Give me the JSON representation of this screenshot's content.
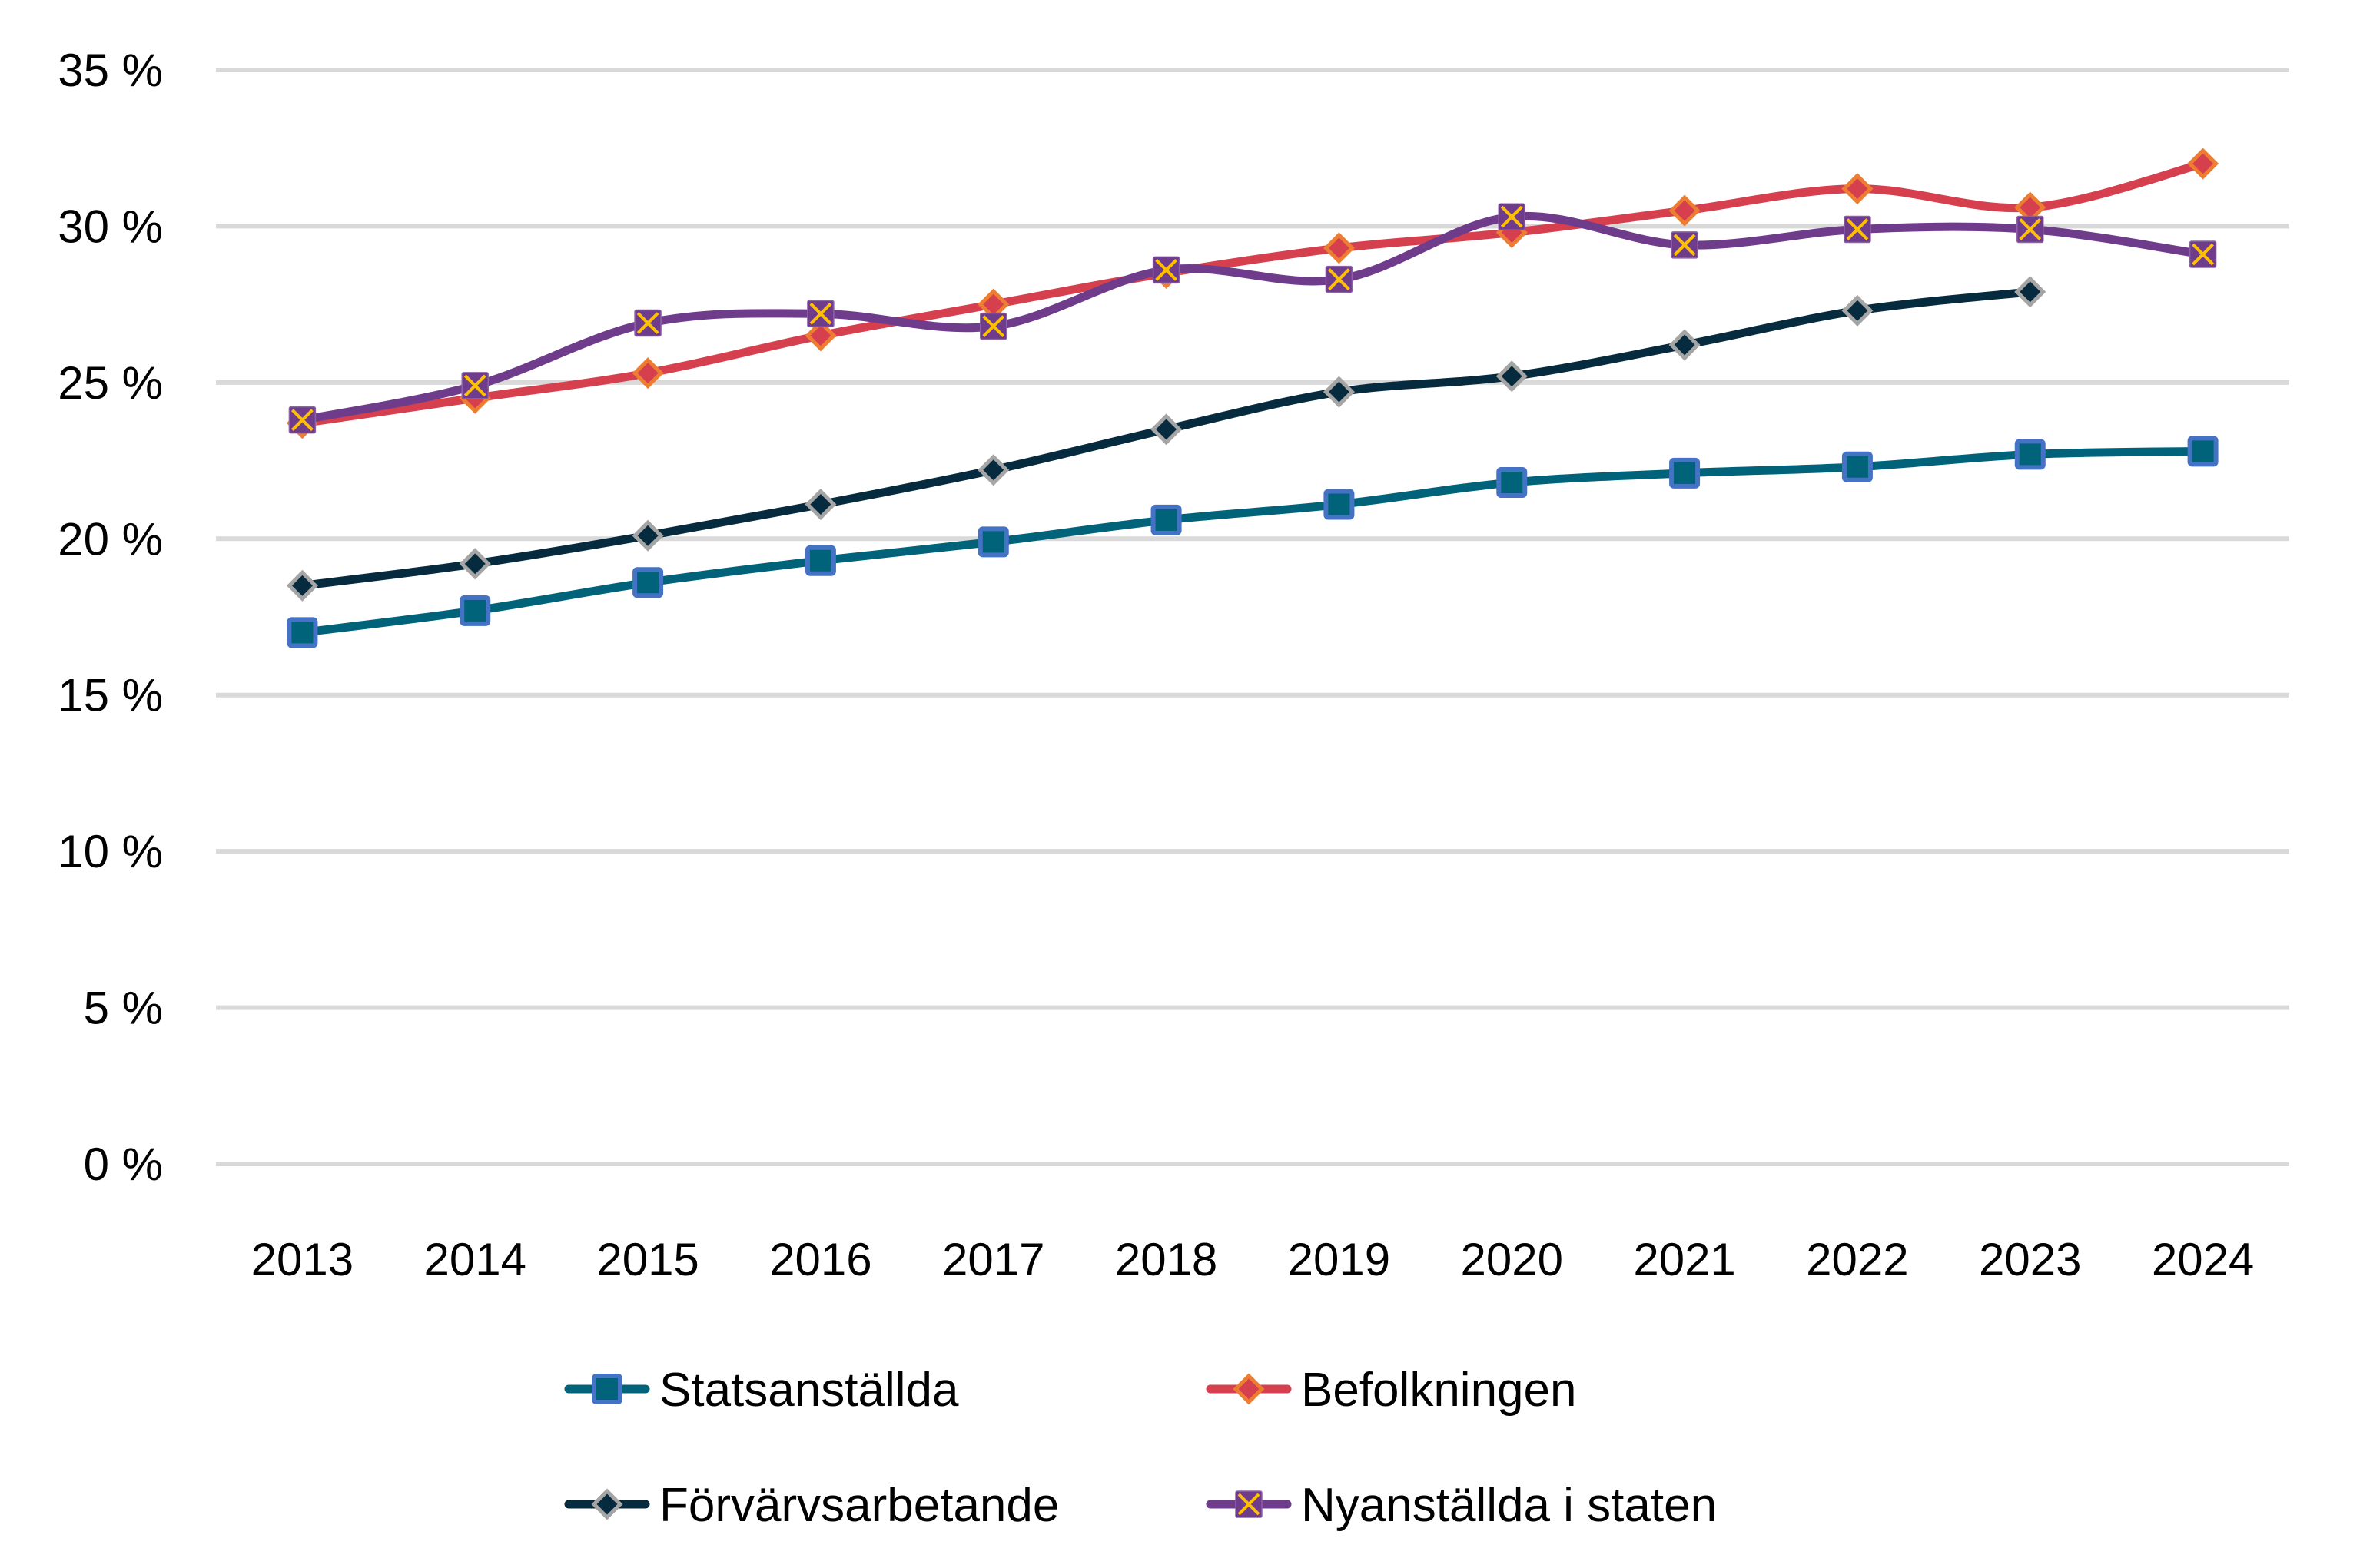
{
  "chart_data": {
    "type": "line",
    "title": "",
    "xlabel": "",
    "ylabel": "",
    "categories": [
      "2013",
      "2014",
      "2015",
      "2016",
      "2017",
      "2018",
      "2019",
      "2020",
      "2021",
      "2022",
      "2023",
      "2024"
    ],
    "ylim": [
      0,
      35
    ],
    "yticks": [
      0,
      5,
      10,
      15,
      20,
      25,
      30,
      35
    ],
    "ytick_labels": [
      "0 %",
      "5 %",
      "10 %",
      "15 %",
      "20 %",
      "25 %",
      "30 %",
      "35 %"
    ],
    "grid": true,
    "smoothed": true,
    "legend_position": "bottom",
    "series": [
      {
        "name": "Statsanställda",
        "marker": "square",
        "line_color": "#00637A",
        "marker_fill": "#00637A",
        "marker_border": "#4472C4",
        "values": [
          17.0,
          17.7,
          18.6,
          19.3,
          19.9,
          20.6,
          21.1,
          21.8,
          22.1,
          22.3,
          22.7,
          22.8
        ]
      },
      {
        "name": "Befolkningen",
        "marker": "diamond",
        "line_color": "#D6404E",
        "marker_fill": "#D6404E",
        "marker_border": "#ED7D31",
        "values": [
          23.7,
          24.5,
          25.3,
          26.5,
          27.5,
          28.5,
          29.3,
          29.8,
          30.5,
          31.2,
          30.6,
          32.0
        ]
      },
      {
        "name": "Förvärvsarbetande",
        "marker": "diamond",
        "line_color": "#062A3E",
        "marker_fill": "#062A3E",
        "marker_border": "#A5A5A5",
        "values": [
          18.5,
          19.2,
          20.1,
          21.1,
          22.2,
          23.5,
          24.7,
          25.2,
          26.2,
          27.3,
          27.9,
          null
        ]
      },
      {
        "name": "Nyanställda i staten",
        "marker": "x-box",
        "line_color": "#6F3C8C",
        "marker_fill": "#6F3C8C",
        "marker_border": "#FFC000",
        "values": [
          23.8,
          24.9,
          26.9,
          27.2,
          26.8,
          28.6,
          28.3,
          30.3,
          29.4,
          29.9,
          29.9,
          29.1
        ]
      }
    ]
  },
  "legend": {
    "items": [
      {
        "label": "Statsanställda"
      },
      {
        "label": "Befolkningen"
      },
      {
        "label": "Förvärvsarbetande"
      },
      {
        "label": "Nyanställda i staten"
      }
    ]
  }
}
